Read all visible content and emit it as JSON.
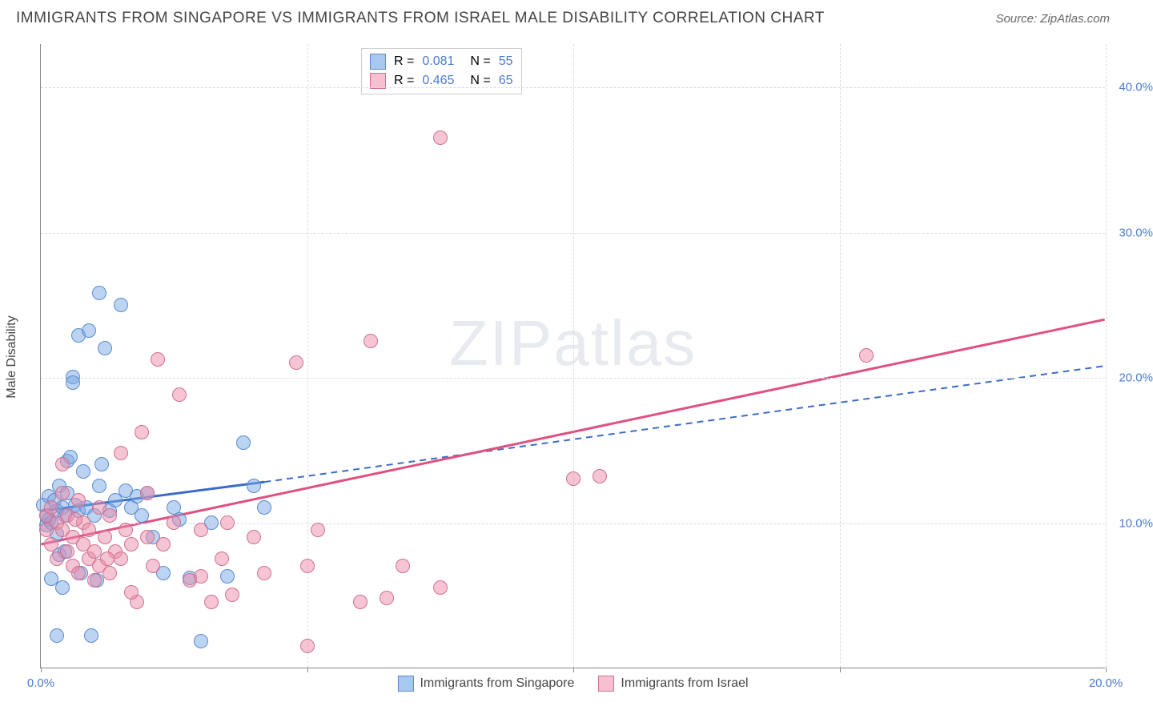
{
  "header": {
    "title": "IMMIGRANTS FROM SINGAPORE VS IMMIGRANTS FROM ISRAEL MALE DISABILITY CORRELATION CHART",
    "source": "Source: ZipAtlas.com"
  },
  "chart": {
    "type": "scatter",
    "ylabel": "Male Disability",
    "watermark": "ZIPatlas",
    "background_color": "#ffffff",
    "grid_color": "#dddddd",
    "axis_color": "#888888",
    "tick_label_color": "#4a7bd0",
    "xlim": [
      0,
      20
    ],
    "ylim": [
      0,
      43
    ],
    "xticks": [
      0,
      5,
      10,
      15,
      20
    ],
    "xtick_labels": [
      "0.0%",
      "",
      "",
      "",
      "20.0%"
    ],
    "yticks": [
      10,
      20,
      30,
      40
    ],
    "ytick_labels": [
      "10.0%",
      "20.0%",
      "30.0%",
      "40.0%"
    ],
    "marker_radius": 9,
    "marker_opacity": 0.55,
    "series": [
      {
        "name": "Immigrants from Singapore",
        "key": "singapore",
        "color_fill": "rgba(122,168,228,0.5)",
        "color_stroke": "#5a8bd0",
        "swatch_fill": "#a8c8ef",
        "swatch_stroke": "#5a8bd0",
        "R_label": "R =",
        "R_value": "0.081",
        "N_label": "N =",
        "N_value": "55",
        "trend": {
          "x1": 0,
          "y1": 10.8,
          "x2": 4.2,
          "y2": 12.8,
          "solid_until_x": 4.2,
          "dash_x2": 20,
          "dash_y2": 20.8,
          "color": "#3a6cc8",
          "width": 3
        },
        "points": [
          [
            0.05,
            11.2
          ],
          [
            0.1,
            10.5
          ],
          [
            0.1,
            9.8
          ],
          [
            0.15,
            10.2
          ],
          [
            0.15,
            11.8
          ],
          [
            0.2,
            10.0
          ],
          [
            0.2,
            6.1
          ],
          [
            0.25,
            11.5
          ],
          [
            0.3,
            10.8
          ],
          [
            0.3,
            9.2
          ],
          [
            0.35,
            12.5
          ],
          [
            0.35,
            7.8
          ],
          [
            0.4,
            11.0
          ],
          [
            0.4,
            5.5
          ],
          [
            0.45,
            10.5
          ],
          [
            0.5,
            12.0
          ],
          [
            0.5,
            14.2
          ],
          [
            0.6,
            20.0
          ],
          [
            0.6,
            19.6
          ],
          [
            0.65,
            11.2
          ],
          [
            0.7,
            22.9
          ],
          [
            0.7,
            10.8
          ],
          [
            0.75,
            6.5
          ],
          [
            0.8,
            13.5
          ],
          [
            0.85,
            11.0
          ],
          [
            0.9,
            23.2
          ],
          [
            0.95,
            2.2
          ],
          [
            1.0,
            10.5
          ],
          [
            1.05,
            6.0
          ],
          [
            1.1,
            25.8
          ],
          [
            1.1,
            12.5
          ],
          [
            1.2,
            22.0
          ],
          [
            1.3,
            10.8
          ],
          [
            1.4,
            11.5
          ],
          [
            1.5,
            25.0
          ],
          [
            1.6,
            12.2
          ],
          [
            1.7,
            11.0
          ],
          [
            1.8,
            11.8
          ],
          [
            1.9,
            10.5
          ],
          [
            2.0,
            12.0
          ],
          [
            2.1,
            9.0
          ],
          [
            2.3,
            6.5
          ],
          [
            2.5,
            11.0
          ],
          [
            2.6,
            10.2
          ],
          [
            2.8,
            6.2
          ],
          [
            3.0,
            1.8
          ],
          [
            3.2,
            10.0
          ],
          [
            3.5,
            6.3
          ],
          [
            3.8,
            15.5
          ],
          [
            4.0,
            12.5
          ],
          [
            4.2,
            11.0
          ],
          [
            0.3,
            2.2
          ],
          [
            0.55,
            14.5
          ],
          [
            1.15,
            14.0
          ],
          [
            0.45,
            8.0
          ]
        ]
      },
      {
        "name": "Immigrants from Israel",
        "key": "israel",
        "color_fill": "rgba(235,140,170,0.5)",
        "color_stroke": "#d07090",
        "swatch_fill": "#f5c0d0",
        "swatch_stroke": "#d07090",
        "R_label": "R =",
        "R_value": "0.465",
        "N_label": "N =",
        "N_value": "65",
        "trend": {
          "x1": 0,
          "y1": 8.5,
          "x2": 20,
          "y2": 24.0,
          "color": "#e05080",
          "width": 3
        },
        "points": [
          [
            0.1,
            10.5
          ],
          [
            0.1,
            9.5
          ],
          [
            0.2,
            11.0
          ],
          [
            0.2,
            8.5
          ],
          [
            0.3,
            10.0
          ],
          [
            0.3,
            7.5
          ],
          [
            0.4,
            9.5
          ],
          [
            0.4,
            12.0
          ],
          [
            0.5,
            8.0
          ],
          [
            0.5,
            10.5
          ],
          [
            0.6,
            7.0
          ],
          [
            0.6,
            9.0
          ],
          [
            0.7,
            11.5
          ],
          [
            0.7,
            6.5
          ],
          [
            0.8,
            8.5
          ],
          [
            0.8,
            10.0
          ],
          [
            0.9,
            7.5
          ],
          [
            0.9,
            9.5
          ],
          [
            1.0,
            8.0
          ],
          [
            1.0,
            6.0
          ],
          [
            1.1,
            11.0
          ],
          [
            1.1,
            7.0
          ],
          [
            1.2,
            9.0
          ],
          [
            1.3,
            6.5
          ],
          [
            1.3,
            10.5
          ],
          [
            1.4,
            8.0
          ],
          [
            1.5,
            7.5
          ],
          [
            1.5,
            14.8
          ],
          [
            1.6,
            9.5
          ],
          [
            1.7,
            8.5
          ],
          [
            1.8,
            4.5
          ],
          [
            1.9,
            16.2
          ],
          [
            2.0,
            9.0
          ],
          [
            2.1,
            7.0
          ],
          [
            2.2,
            21.2
          ],
          [
            2.3,
            8.5
          ],
          [
            2.5,
            10.0
          ],
          [
            2.6,
            18.8
          ],
          [
            2.8,
            6.0
          ],
          [
            3.0,
            9.5
          ],
          [
            3.0,
            6.3
          ],
          [
            3.2,
            4.5
          ],
          [
            3.4,
            7.5
          ],
          [
            3.5,
            10.0
          ],
          [
            3.6,
            5.0
          ],
          [
            4.0,
            9.0
          ],
          [
            4.2,
            6.5
          ],
          [
            4.8,
            21.0
          ],
          [
            5.0,
            1.5
          ],
          [
            5.0,
            7.0
          ],
          [
            5.2,
            9.5
          ],
          [
            6.0,
            4.5
          ],
          [
            6.2,
            22.5
          ],
          [
            6.5,
            4.8
          ],
          [
            6.8,
            7.0
          ],
          [
            7.5,
            36.5
          ],
          [
            7.5,
            5.5
          ],
          [
            10.0,
            13.0
          ],
          [
            10.5,
            13.2
          ],
          [
            15.5,
            21.5
          ],
          [
            1.7,
            5.2
          ],
          [
            2.0,
            12.0
          ],
          [
            0.4,
            14.0
          ],
          [
            1.25,
            7.5
          ],
          [
            0.65,
            10.2
          ]
        ]
      }
    ],
    "legend_bottom": [
      {
        "swatch_fill": "#a8c8ef",
        "swatch_stroke": "#5a8bd0",
        "label": "Immigrants from Singapore"
      },
      {
        "swatch_fill": "#f5c0d0",
        "swatch_stroke": "#d07090",
        "label": "Immigrants from Israel"
      }
    ]
  }
}
